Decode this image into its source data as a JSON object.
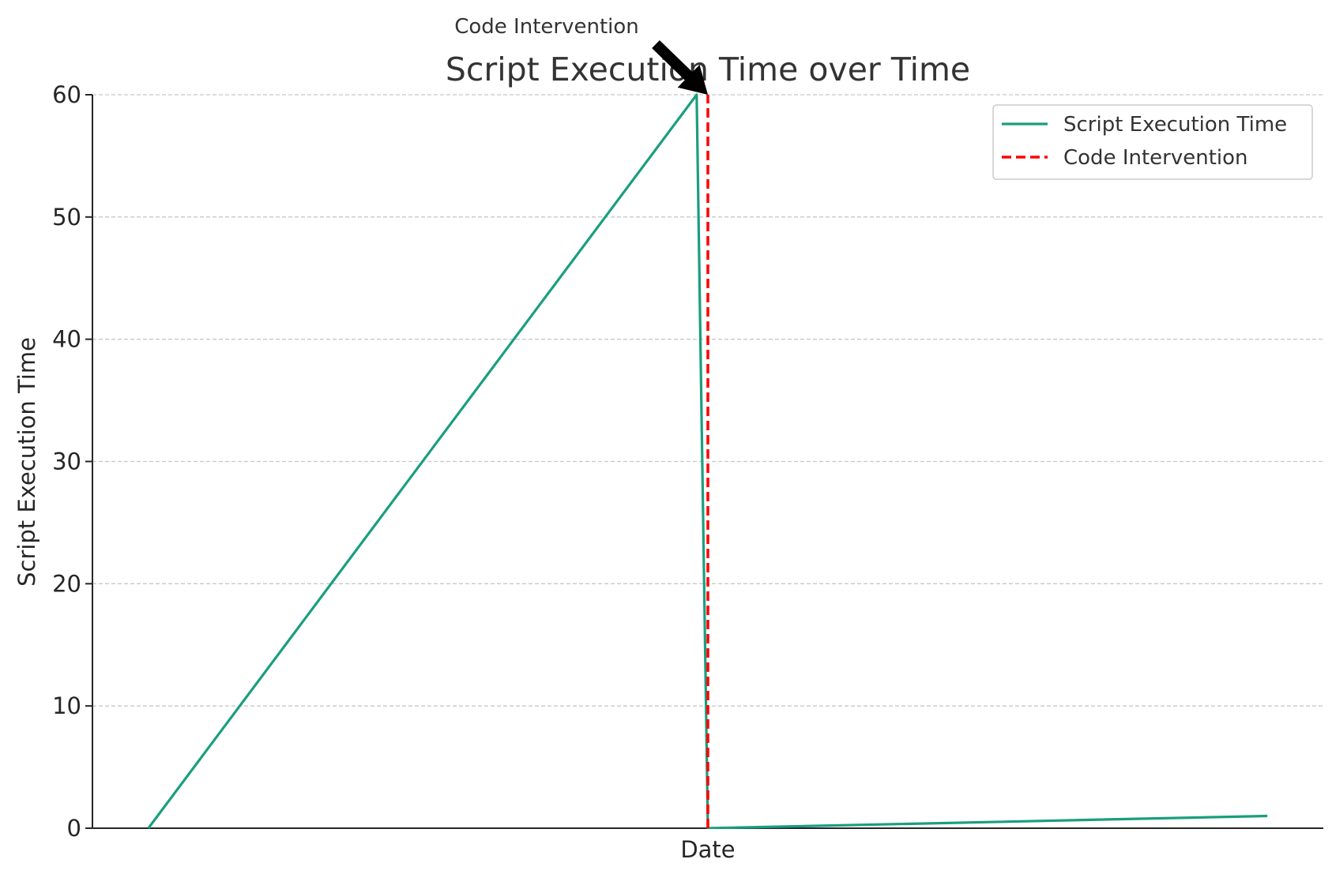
{
  "chart_data": {
    "type": "line",
    "title": "Script Execution Time over Time",
    "xlabel": "Date",
    "ylabel": "Script Execution Time",
    "ylim": [
      0,
      60
    ],
    "yticks": [
      0,
      10,
      20,
      30,
      40,
      50,
      60
    ],
    "xlim": [
      -5,
      105
    ],
    "grid": "horizontal dashed",
    "legend_position": "top-right",
    "series": [
      {
        "name": "Script Execution Time",
        "color": "#1a9e7e",
        "x": [
          0,
          49,
          50,
          100
        ],
        "y": [
          0,
          60,
          0,
          1
        ]
      }
    ],
    "vline": {
      "name": "Code Intervention",
      "x": 50,
      "color": "#ff0000",
      "style": "dashed"
    },
    "annotation": {
      "text": "Code Intervention",
      "target": [
        50,
        60
      ]
    }
  }
}
